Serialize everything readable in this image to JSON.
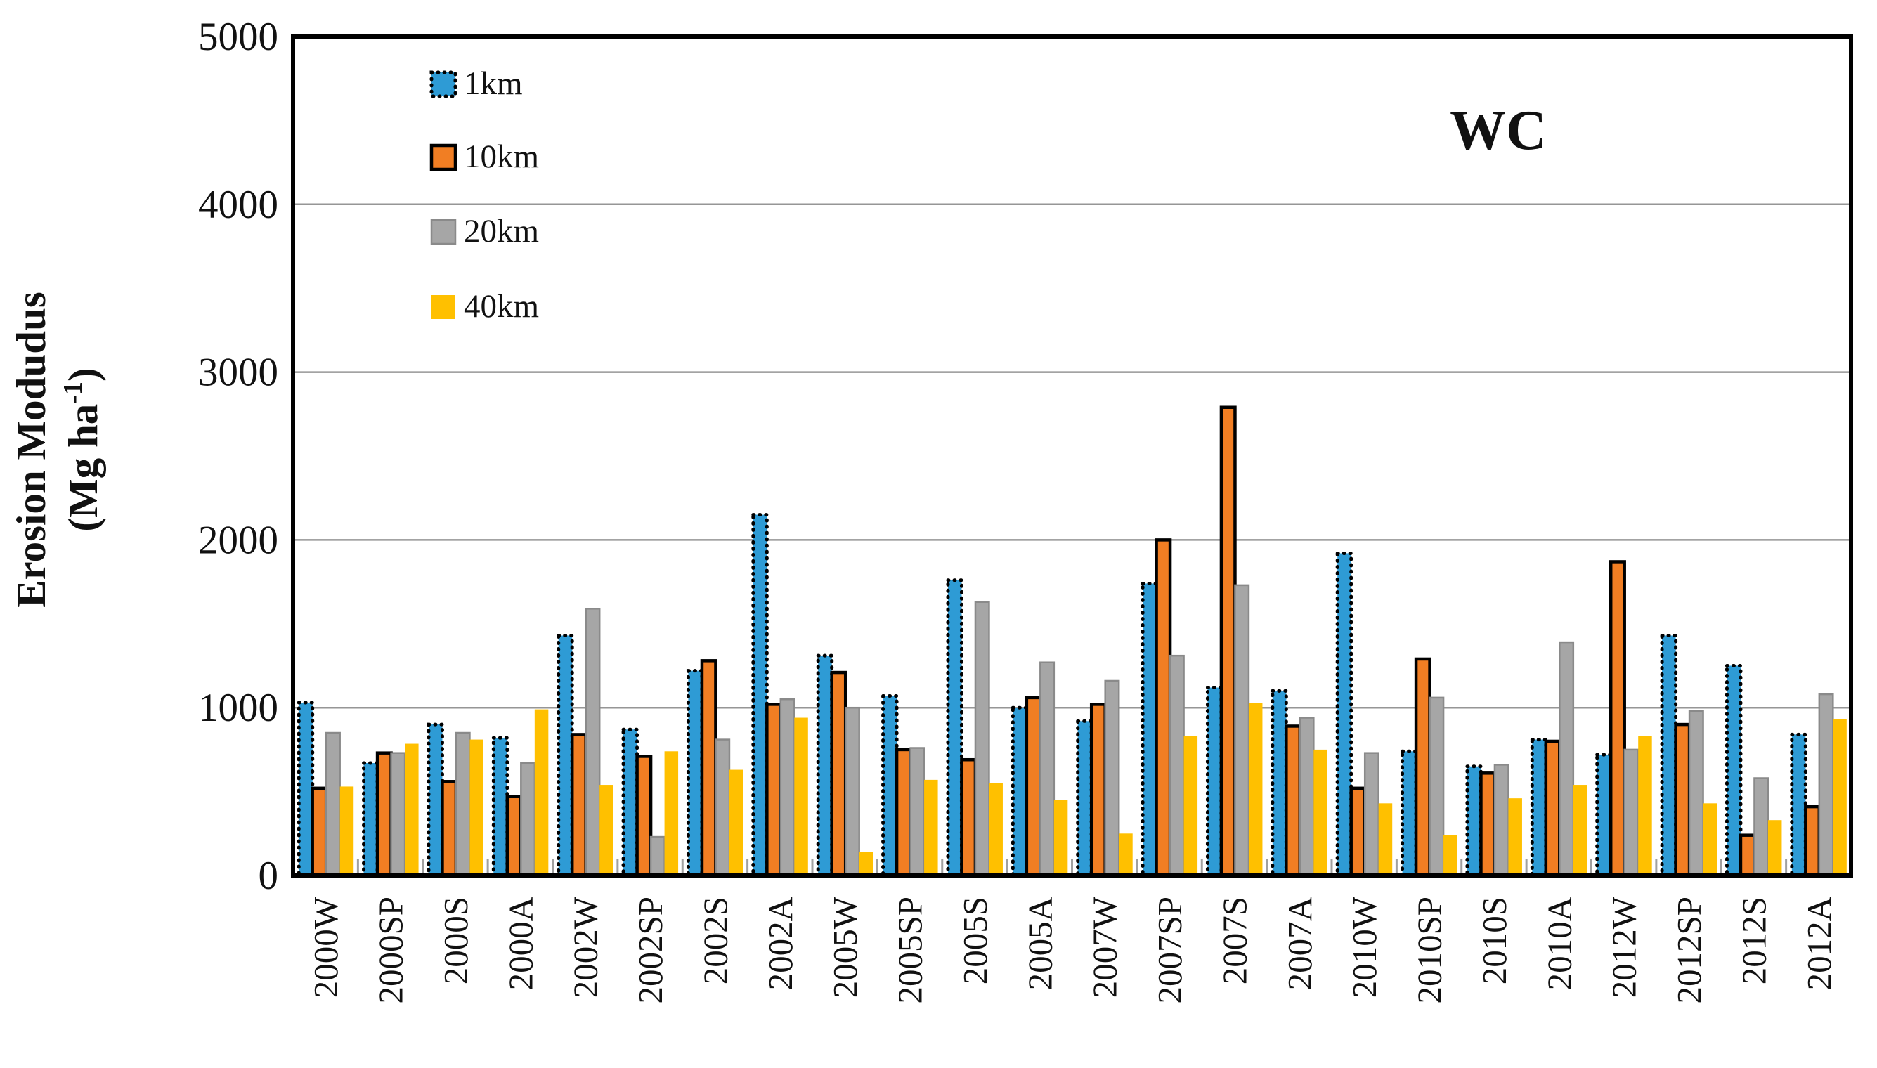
{
  "title": "WC",
  "y_axis": {
    "title_line1": "Erosion Modudus",
    "unit_pre": "(Mg ha",
    "unit_sup": "-1",
    "unit_post": ")",
    "tick_labels": [
      "0",
      "1000",
      "2000",
      "3000",
      "4000",
      "5000"
    ]
  },
  "legend": {
    "items": [
      "1km",
      "10km",
      "20km",
      "40km"
    ]
  },
  "colors": {
    "series_1km": "#2E9BD5",
    "series_10km": "#F17E23",
    "series_20km": "#A6A6A6",
    "series_40km": "#FFC000",
    "gridline": "#969696",
    "axis": "#000000"
  },
  "chart_data": {
    "type": "bar",
    "title": "WC",
    "xlabel": "",
    "ylabel": "Erosion Modudus (Mg ha-1)",
    "ylim": [
      0,
      5000
    ],
    "ytick_interval": 1000,
    "grid": "horizontal",
    "legend_position": "top-left-inside",
    "categories": [
      "2000W",
      "2000SP",
      "2000S",
      "2000A",
      "2002W",
      "2002SP",
      "2002S",
      "2002A",
      "2005W",
      "2005SP",
      "2005S",
      "2005A",
      "2007W",
      "2007SP",
      "2007S",
      "2007A",
      "2010W",
      "2010SP",
      "2010S",
      "2010A",
      "2012W",
      "2012SP",
      "2012S",
      "2012A"
    ],
    "series": [
      {
        "name": "1km",
        "color": "#2E9BD5",
        "border": "dotted-black",
        "values": [
          1030,
          670,
          900,
          820,
          1430,
          870,
          1220,
          2150,
          1310,
          1070,
          1760,
          1000,
          920,
          1740,
          1120,
          1100,
          1920,
          740,
          650,
          810,
          720,
          1430,
          1250,
          840
        ]
      },
      {
        "name": "10km",
        "color": "#F17E23",
        "border": "solid-black",
        "values": [
          520,
          730,
          560,
          470,
          840,
          710,
          1280,
          1020,
          1210,
          750,
          690,
          1060,
          1020,
          2000,
          2790,
          890,
          520,
          1290,
          610,
          800,
          1870,
          900,
          240,
          410
        ]
      },
      {
        "name": "20km",
        "color": "#A6A6A6",
        "border": "solid-gray",
        "values": [
          850,
          730,
          850,
          670,
          1590,
          230,
          810,
          1050,
          1000,
          760,
          1630,
          1270,
          1160,
          1310,
          1730,
          940,
          730,
          1060,
          660,
          1390,
          750,
          980,
          580,
          1080
        ]
      },
      {
        "name": "40km",
        "color": "#FFC000",
        "border": "none",
        "values": [
          530,
          785,
          810,
          990,
          540,
          740,
          630,
          940,
          140,
          570,
          550,
          450,
          250,
          830,
          1030,
          750,
          430,
          240,
          460,
          540,
          830,
          430,
          330,
          930
        ]
      }
    ]
  }
}
